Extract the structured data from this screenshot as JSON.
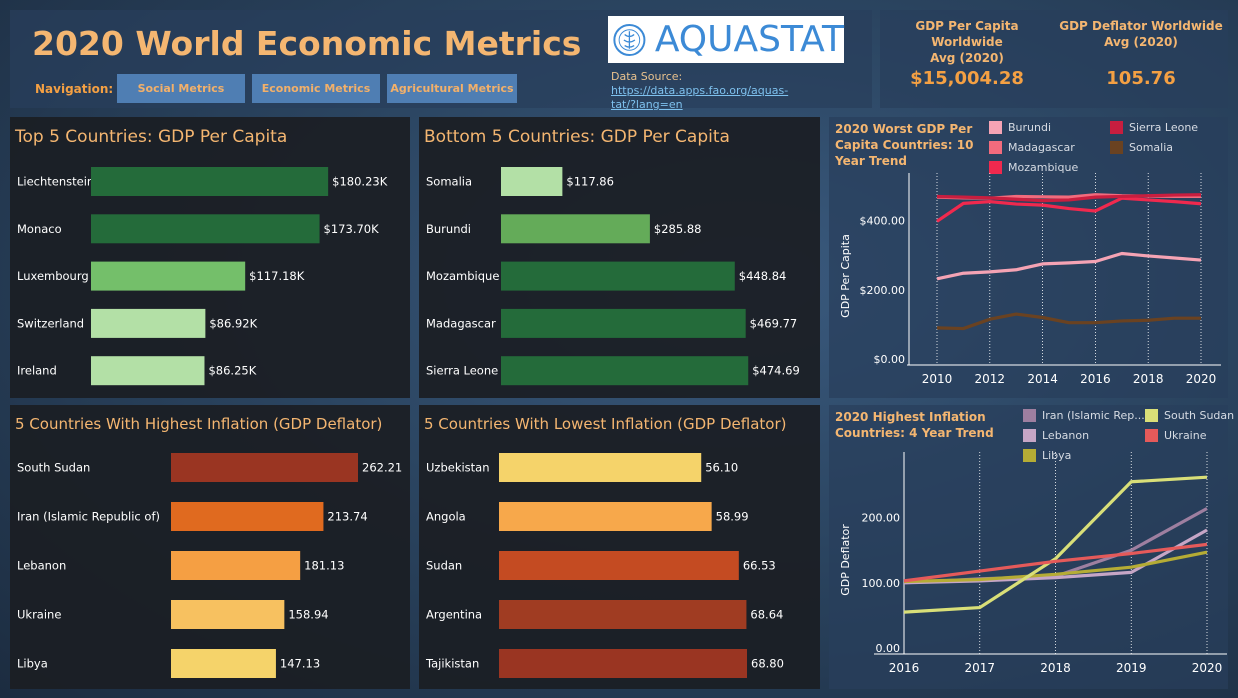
{
  "header": {
    "title": "2020 World Economic Metrics",
    "nav_label": "Navigation:",
    "nav_buttons": [
      "Social Metrics",
      "Economic Metrics",
      "Agricultural Metrics"
    ],
    "logo_text": "AQUASTAT",
    "logo_icon": "fao-logo-icon",
    "source_label": "Data Source:",
    "source_link": "https://data.apps.fao.org/aquastat/?lang=en",
    "source_link_line1": "https://data.apps.fao.org/aquas-",
    "source_link_line2": "tat/?lang=en"
  },
  "kpis": [
    {
      "label_line1": "GDP Per Capita Worldwide",
      "label_line2": "Avg (2020)",
      "value": "$15,004.28"
    },
    {
      "label_line1": "GDP Deflator Worldwide",
      "label_line2": "Avg (2020)",
      "value": "105.76"
    }
  ],
  "colors": {
    "accent": "#f4b671",
    "top5": [
      "#246b3a",
      "#246b3a",
      "#74bf6a",
      "#b3e0a6",
      "#b3e0a6"
    ],
    "bottom5": [
      "#b3e0a6",
      "#64ab59",
      "#246b3a",
      "#246b3a",
      "#246b3a"
    ],
    "high_infl": [
      "#9a3522",
      "#e06a1f",
      "#f59f43",
      "#f7c160",
      "#f5d36a"
    ],
    "low_infl": [
      "#f5d36a",
      "#f7a84b",
      "#c44b22",
      "#a03c22",
      "#9a3522"
    ]
  },
  "chart_data": [
    {
      "type": "bar",
      "title": "Top 5 Countries: GDP Per Capita",
      "categories": [
        "Liechtenstein",
        "Monaco",
        "Luxembourg",
        "Switzerland",
        "Ireland"
      ],
      "values": [
        180230,
        173700,
        117180,
        86920,
        86250
      ],
      "labels": [
        "$180.23K",
        "$173.70K",
        "$117.18K",
        "$86.92K",
        "$86.25K"
      ],
      "xlim": [
        0,
        190000
      ]
    },
    {
      "type": "bar",
      "title": "Bottom 5 Countries: GDP Per Capita",
      "categories": [
        "Somalia",
        "Burundi",
        "Mozambique",
        "Madagascar",
        "Sierra Leone"
      ],
      "values": [
        117.86,
        285.88,
        448.84,
        469.77,
        474.69
      ],
      "labels": [
        "$117.86",
        "$285.88",
        "$448.84",
        "$469.77",
        "$474.69"
      ],
      "xlim": [
        0,
        480
      ]
    },
    {
      "type": "bar",
      "title": "5 Countries With Highest Inflation (GDP Deflator)",
      "categories": [
        "South Sudan",
        "Iran (Islamic Republic of)",
        "Lebanon",
        "Ukraine",
        "Libya"
      ],
      "values": [
        262.21,
        213.74,
        181.13,
        158.94,
        147.13
      ],
      "labels": [
        "262.21",
        "213.74",
        "181.13",
        "158.94",
        "147.13"
      ],
      "xlim": [
        0,
        262.21
      ]
    },
    {
      "type": "bar",
      "title": "5 Countries With Lowest Inflation (GDP Deflator)",
      "categories": [
        "Uzbekistan",
        "Angola",
        "Sudan",
        "Argentina",
        "Tajikistan"
      ],
      "values": [
        56.1,
        58.99,
        66.53,
        68.64,
        68.8
      ],
      "labels": [
        "56.10",
        "58.99",
        "66.53",
        "68.64",
        "68.80"
      ],
      "xlim": [
        0,
        68.8
      ]
    },
    {
      "type": "line",
      "title": "2020 Worst GDP Per Capita Countries: 10 Year Trend",
      "ylabel": "GDP Per Capita",
      "x": [
        2010,
        2011,
        2012,
        2013,
        2014,
        2015,
        2016,
        2017,
        2018,
        2019,
        2020
      ],
      "xticks": [
        "2010",
        "2012",
        "2014",
        "2016",
        "2018",
        "2020"
      ],
      "yticks": [
        "$0.00",
        "$200.00",
        "$400.00"
      ],
      "ylim": [
        0,
        480
      ],
      "series": [
        {
          "name": "Burundi",
          "color": "#f5a3b4",
          "values": [
            232,
            248,
            252,
            258,
            275,
            278,
            282,
            305,
            298,
            292,
            286
          ]
        },
        {
          "name": "Madagascar",
          "color": "#f26b7d",
          "values": [
            468,
            466,
            465,
            470,
            469,
            468,
            475,
            472,
            471,
            470,
            470
          ]
        },
        {
          "name": "Mozambique",
          "color": "#f0294e",
          "values": [
            398,
            450,
            455,
            448,
            445,
            435,
            428,
            465,
            460,
            455,
            449
          ]
        },
        {
          "name": "Sierra Leone",
          "color": "#c81e3f",
          "values": [
            470,
            468,
            466,
            462,
            458,
            460,
            468,
            470,
            472,
            474,
            475
          ]
        },
        {
          "name": "Somalia",
          "color": "#6a4221",
          "values": [
            90,
            88,
            115,
            130,
            120,
            105,
            105,
            110,
            112,
            118,
            118
          ]
        }
      ]
    },
    {
      "type": "line",
      "title": "2020 Highest Inflation Countries: 4 Year Trend",
      "ylabel": "GDP Deflator",
      "x": [
        2016,
        2017,
        2018,
        2019,
        2020
      ],
      "xticks": [
        "2016",
        "2017",
        "2018",
        "2019",
        "2020"
      ],
      "yticks": [
        "0.00",
        "100.00",
        "200.00"
      ],
      "ylim": [
        0,
        270
      ],
      "series": [
        {
          "name": "Iran (Islamic Rep...",
          "color": "#9e7fa0",
          "values": [
            100,
            106,
            110,
            150,
            214
          ]
        },
        {
          "name": "Lebanon",
          "color": "#c6a6c6",
          "values": [
            100,
            103,
            108,
            116,
            181
          ]
        },
        {
          "name": "Libya",
          "color": "#b5ac35",
          "values": [
            102,
            105,
            113,
            124,
            147
          ]
        },
        {
          "name": "South Sudan",
          "color": "#d9df78",
          "values": [
            55,
            62,
            137,
            255,
            262
          ]
        },
        {
          "name": "Ukraine",
          "color": "#e55a5a",
          "values": [
            103,
            118,
            133,
            145,
            159
          ]
        }
      ]
    }
  ]
}
